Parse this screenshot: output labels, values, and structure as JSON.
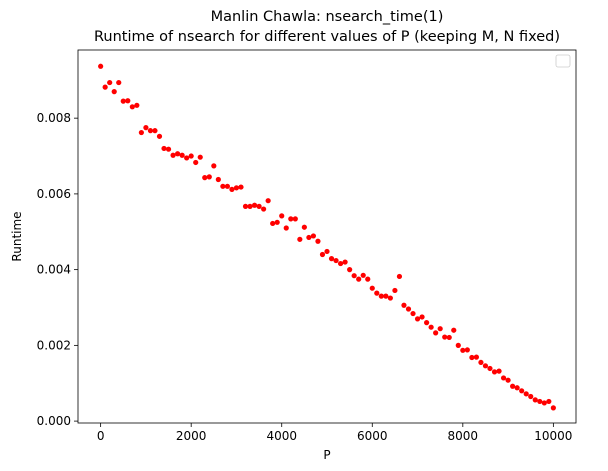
{
  "chart_data": {
    "type": "scatter",
    "title": "Manlin Chawla: nsearch_time(1)",
    "subtitle": "Runtime of nsearch for different values of P (keeping M, N fixed)",
    "xlabel": "P",
    "ylabel": "Runtime",
    "xlim": [
      -500,
      10500
    ],
    "ylim": [
      -5e-05,
      0.0098
    ],
    "xticks": [
      0,
      2000,
      4000,
      6000,
      8000,
      10000
    ],
    "xtick_labels": [
      "0",
      "2000",
      "4000",
      "6000",
      "8000",
      "10000"
    ],
    "yticks": [
      0.0,
      0.002,
      0.004,
      0.006,
      0.008
    ],
    "ytick_labels": [
      "0.000",
      "0.002",
      "0.004",
      "0.006",
      "0.008"
    ],
    "grid": false,
    "legend": "top-right (empty)",
    "marker_color": "#ff0000",
    "series": [
      {
        "x": [
          0,
          100,
          200,
          300,
          400,
          500,
          600,
          700,
          800,
          900,
          1000,
          1100,
          1200,
          1300,
          1400,
          1500,
          1600,
          1700,
          1800,
          1900,
          2000,
          2100,
          2200,
          2300,
          2400,
          2500,
          2600,
          2700,
          2800,
          2900,
          3000,
          3100,
          3200,
          3300,
          3400,
          3500,
          3600,
          3700,
          3800,
          3900,
          4000,
          4100,
          4200,
          4300,
          4400,
          4500,
          4600,
          4700,
          4800,
          4900,
          5000,
          5100,
          5200,
          5300,
          5400,
          5500,
          5600,
          5700,
          5800,
          5900,
          6000,
          6100,
          6200,
          6300,
          6400,
          6500,
          6600,
          6700,
          6800,
          6900,
          7000,
          7100,
          7200,
          7300,
          7400,
          7500,
          7600,
          7700,
          7800,
          7900,
          8000,
          8100,
          8200,
          8300,
          8400,
          8500,
          8600,
          8700,
          8800,
          8900,
          9000,
          9100,
          9200,
          9300,
          9400,
          9500,
          9600,
          9700,
          9800,
          9900,
          10000
        ],
        "y": [
          0.00937,
          0.00882,
          0.00894,
          0.0087,
          0.00894,
          0.00845,
          0.00846,
          0.0083,
          0.00834,
          0.00762,
          0.00775,
          0.00767,
          0.00767,
          0.00752,
          0.0072,
          0.00718,
          0.00702,
          0.00706,
          0.00702,
          0.00695,
          0.007,
          0.00683,
          0.00697,
          0.00643,
          0.00645,
          0.00674,
          0.00638,
          0.0062,
          0.0062,
          0.00612,
          0.00616,
          0.00618,
          0.00567,
          0.00567,
          0.0057,
          0.00567,
          0.0056,
          0.00582,
          0.00522,
          0.00525,
          0.00542,
          0.0051,
          0.00534,
          0.00534,
          0.0048,
          0.00512,
          0.00485,
          0.00489,
          0.00475,
          0.0044,
          0.00448,
          0.00429,
          0.00424,
          0.00416,
          0.0042,
          0.004,
          0.00384,
          0.00375,
          0.00385,
          0.00375,
          0.00351,
          0.00338,
          0.0033,
          0.0033,
          0.00325,
          0.00345,
          0.00382,
          0.00306,
          0.00296,
          0.00284,
          0.0027,
          0.00275,
          0.0026,
          0.00248,
          0.00233,
          0.00244,
          0.00222,
          0.00221,
          0.0024,
          0.002,
          0.00187,
          0.00188,
          0.00168,
          0.00169,
          0.00155,
          0.00146,
          0.00139,
          0.0013,
          0.00132,
          0.00114,
          0.00108,
          0.00092,
          0.00088,
          0.0008,
          0.00072,
          0.00065,
          0.00056,
          0.00052,
          0.00048,
          0.00052,
          0.00035
        ]
      }
    ]
  }
}
